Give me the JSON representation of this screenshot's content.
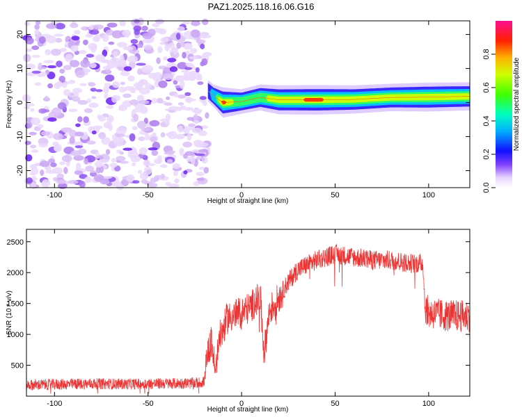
{
  "title": "PAZ1.2025.118.16.06.G16",
  "chart_data": [
    {
      "type": "heatmap",
      "xlabel": "Height of straight line (km)",
      "ylabel": "Frequency (Hz)",
      "xlim": [
        -115,
        122
      ],
      "ylim": [
        -25,
        24
      ],
      "xticks": [
        -100,
        -50,
        0,
        50,
        100
      ],
      "yticks": [
        -20,
        -10,
        0,
        10,
        20
      ],
      "noise_region_x": [
        -115,
        -18
      ],
      "signal_band": [
        {
          "x": -18,
          "f": 3.5,
          "a": 0.3
        },
        {
          "x": -15,
          "f": 2.0,
          "a": 0.35
        },
        {
          "x": -10,
          "f": 0.0,
          "a": 0.9
        },
        {
          "x": 0,
          "f": 0.3,
          "a": 0.5
        },
        {
          "x": 10,
          "f": 1.5,
          "a": 0.6
        },
        {
          "x": 20,
          "f": 0.8,
          "a": 0.8
        },
        {
          "x": 40,
          "f": 0.8,
          "a": 0.85
        },
        {
          "x": 60,
          "f": 0.9,
          "a": 0.75
        },
        {
          "x": 80,
          "f": 1.5,
          "a": 0.7
        },
        {
          "x": 100,
          "f": 1.6,
          "a": 0.8
        },
        {
          "x": 120,
          "f": 1.8,
          "a": 0.75
        }
      ],
      "colorbar": {
        "label": "Normalized spectral amplitude",
        "range": [
          0,
          1
        ],
        "ticks": [
          "0.0",
          "0.2",
          "0.4",
          "0.6",
          "0.8"
        ]
      }
    },
    {
      "type": "line",
      "xlabel": "Height of straight line (km)",
      "ylabel": "SNR (10 * v/v)",
      "xlim": [
        -115,
        122
      ],
      "ylim": [
        0,
        2700
      ],
      "xticks": [
        -100,
        -50,
        0,
        50,
        100
      ],
      "yticks": [
        500,
        1000,
        1500,
        2000,
        2500
      ],
      "color": "#ee3333",
      "series": [
        {
          "x": [
            -115,
            -100,
            -80,
            -60,
            -40,
            -25,
            -20,
            -18,
            -16,
            -14,
            -12,
            -10,
            -8,
            -5,
            0,
            5,
            8,
            10,
            12,
            15,
            18,
            20,
            25,
            30,
            40,
            50,
            60,
            70,
            80,
            90,
            97,
            98,
            100,
            110,
            122
          ],
          "values": [
            180,
            190,
            200,
            195,
            205,
            210,
            230,
            700,
            900,
            350,
            950,
            1050,
            1250,
            1300,
            1350,
            1450,
            1550,
            1600,
            700,
            1400,
            1500,
            1600,
            1850,
            2050,
            2200,
            2300,
            2250,
            2200,
            2200,
            2150,
            2150,
            1450,
            1350,
            1300,
            1300
          ]
        }
      ]
    }
  ]
}
